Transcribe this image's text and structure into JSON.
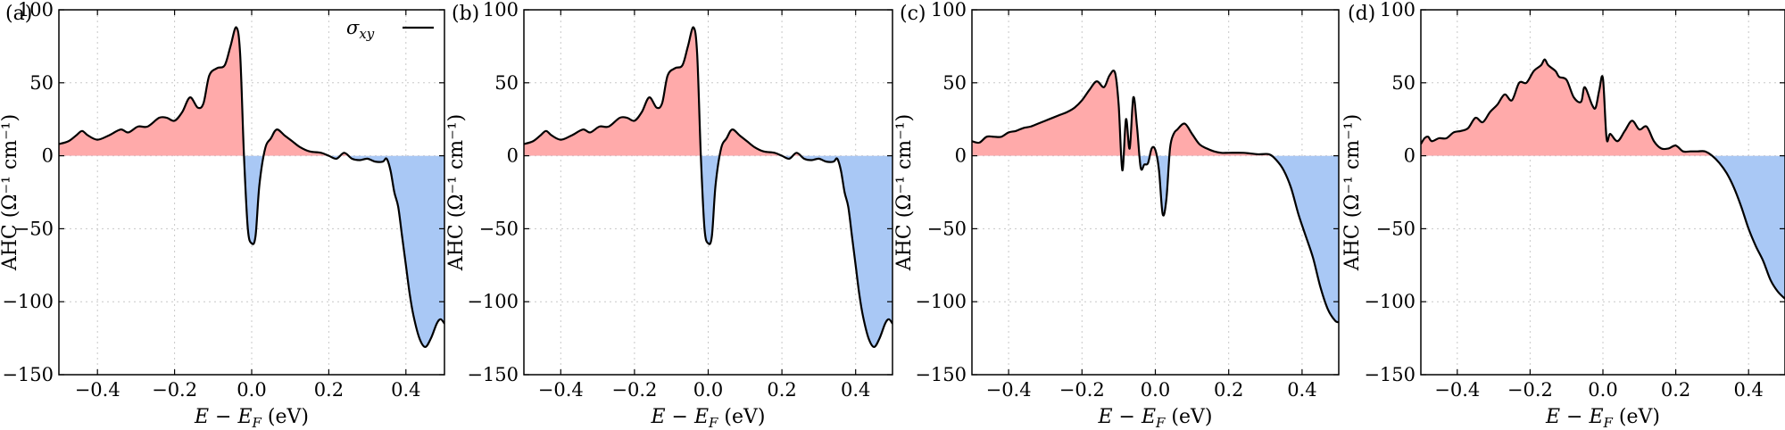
{
  "chart_data": [
    {
      "type": "area",
      "panel_label": "(a)",
      "xlabel": "E − E_F (eV)",
      "ylabel": "AHC (Ω⁻¹ cm⁻¹)",
      "xlim": [
        -0.5,
        0.5
      ],
      "ylim": [
        -150,
        100
      ],
      "xticks": [
        -0.4,
        -0.2,
        0.0,
        0.2,
        0.4
      ],
      "xtick_labels": [
        "−0.4",
        "−0.2",
        "0.0",
        "0.2",
        "0.4"
      ],
      "yticks": [
        -150,
        -100,
        -50,
        0,
        50,
        100
      ],
      "ytick_labels": [
        "−150",
        "−100",
        "−50",
        "0",
        "50",
        "100"
      ],
      "grid": true,
      "legend": {
        "entries": [
          "σxy"
        ],
        "position": "top-right"
      },
      "fill_colors": {
        "positive": "#ffaaaa",
        "negative": "#a9c8f5"
      },
      "series": [
        {
          "name": "σxy",
          "x": [
            -0.5,
            -0.475,
            -0.455,
            -0.44,
            -0.425,
            -0.4,
            -0.37,
            -0.34,
            -0.32,
            -0.295,
            -0.27,
            -0.24,
            -0.22,
            -0.2,
            -0.18,
            -0.16,
            -0.14,
            -0.125,
            -0.11,
            -0.09,
            -0.07,
            -0.055,
            -0.04,
            -0.03,
            -0.02,
            -0.01,
            0.0,
            0.01,
            0.02,
            0.035,
            0.05,
            0.065,
            0.085,
            0.105,
            0.125,
            0.15,
            0.18,
            0.2,
            0.22,
            0.24,
            0.26,
            0.28,
            0.3,
            0.32,
            0.34,
            0.35,
            0.36,
            0.37,
            0.38,
            0.39,
            0.4,
            0.41,
            0.42,
            0.435,
            0.45,
            0.465,
            0.48,
            0.49,
            0.5
          ],
          "y": [
            8,
            10,
            14,
            17,
            14,
            11,
            14,
            18,
            16,
            20,
            20,
            26,
            26,
            24,
            30,
            40,
            33,
            36,
            55,
            60,
            62,
            75,
            88,
            70,
            0,
            -50,
            -60,
            -55,
            -20,
            5,
            12,
            18,
            14,
            10,
            6,
            3,
            2,
            0,
            -2,
            2,
            -2,
            -3,
            -2,
            -4,
            -4,
            -2,
            -10,
            -25,
            -35,
            -55,
            -75,
            -95,
            -110,
            -125,
            -131,
            -125,
            -115,
            -112,
            -115
          ]
        }
      ]
    },
    {
      "type": "area",
      "panel_label": "(b)",
      "xlabel": "E − E_F (eV)",
      "ylabel": "AHC (Ω⁻¹ cm⁻¹)",
      "xlim": [
        -0.5,
        0.5
      ],
      "ylim": [
        -150,
        100
      ],
      "xticks": [
        -0.4,
        -0.2,
        0.0,
        0.2,
        0.4
      ],
      "xtick_labels": [
        "−0.4",
        "−0.2",
        "0.0",
        "0.2",
        "0.4"
      ],
      "yticks": [
        -150,
        -100,
        -50,
        0,
        50,
        100
      ],
      "ytick_labels": [
        "−150",
        "−100",
        "−50",
        "0",
        "50",
        "100"
      ],
      "grid": true,
      "fill_colors": {
        "positive": "#ffaaaa",
        "negative": "#a9c8f5"
      },
      "series": [
        {
          "x": [
            -0.5,
            -0.475,
            -0.455,
            -0.44,
            -0.425,
            -0.4,
            -0.37,
            -0.34,
            -0.32,
            -0.295,
            -0.27,
            -0.24,
            -0.22,
            -0.2,
            -0.18,
            -0.16,
            -0.14,
            -0.125,
            -0.11,
            -0.09,
            -0.07,
            -0.055,
            -0.04,
            -0.03,
            -0.02,
            -0.01,
            0.0,
            0.01,
            0.02,
            0.035,
            0.05,
            0.065,
            0.085,
            0.105,
            0.125,
            0.15,
            0.18,
            0.2,
            0.22,
            0.24,
            0.26,
            0.28,
            0.3,
            0.32,
            0.34,
            0.35,
            0.36,
            0.37,
            0.38,
            0.39,
            0.4,
            0.41,
            0.42,
            0.435,
            0.45,
            0.465,
            0.48,
            0.49,
            0.5
          ],
          "y": [
            8,
            10,
            14,
            17,
            14,
            11,
            14,
            18,
            16,
            20,
            20,
            26,
            26,
            24,
            30,
            40,
            33,
            36,
            55,
            60,
            62,
            75,
            88,
            70,
            0,
            -50,
            -60,
            -55,
            -20,
            5,
            12,
            18,
            14,
            10,
            6,
            3,
            2,
            0,
            -2,
            2,
            -2,
            -3,
            -2,
            -4,
            -4,
            -2,
            -10,
            -25,
            -35,
            -55,
            -75,
            -95,
            -110,
            -125,
            -131,
            -125,
            -115,
            -112,
            -115
          ]
        }
      ]
    },
    {
      "type": "area",
      "panel_label": "(c)",
      "xlabel": "E − E_F (eV)",
      "ylabel": "AHC (Ω⁻¹ cm⁻¹)",
      "xlim": [
        -0.5,
        0.5
      ],
      "ylim": [
        -150,
        100
      ],
      "xticks": [
        -0.4,
        -0.2,
        0.0,
        0.2,
        0.4
      ],
      "xtick_labels": [
        "−0.4",
        "−0.2",
        "0.0",
        "0.2",
        "0.4"
      ],
      "yticks": [
        -150,
        -100,
        -50,
        0,
        50,
        100
      ],
      "ytick_labels": [
        "−150",
        "−100",
        "−50",
        "0",
        "50",
        "100"
      ],
      "grid": true,
      "fill_colors": {
        "positive": "#ffaaaa",
        "negative": "#a9c8f5"
      },
      "series": [
        {
          "x": [
            -0.5,
            -0.48,
            -0.46,
            -0.44,
            -0.42,
            -0.4,
            -0.38,
            -0.36,
            -0.34,
            -0.32,
            -0.3,
            -0.28,
            -0.26,
            -0.24,
            -0.22,
            -0.2,
            -0.18,
            -0.16,
            -0.14,
            -0.125,
            -0.11,
            -0.1,
            -0.09,
            -0.08,
            -0.07,
            -0.06,
            -0.05,
            -0.04,
            -0.03,
            -0.02,
            -0.01,
            0.0,
            0.01,
            0.02,
            0.03,
            0.04,
            0.05,
            0.06,
            0.08,
            0.1,
            0.12,
            0.14,
            0.16,
            0.18,
            0.2,
            0.24,
            0.28,
            0.31,
            0.33,
            0.35,
            0.37,
            0.39,
            0.41,
            0.43,
            0.45,
            0.47,
            0.49,
            0.5
          ],
          "y": [
            10,
            9,
            13,
            13,
            13,
            16,
            17,
            19,
            20,
            22,
            24,
            26,
            28,
            30,
            33,
            38,
            45,
            51,
            47,
            55,
            57,
            35,
            -10,
            25,
            5,
            40,
            20,
            -8,
            -6,
            -5,
            5,
            4,
            -10,
            -40,
            -30,
            5,
            15,
            18,
            22,
            15,
            8,
            5,
            3,
            2,
            2,
            2,
            1,
            1,
            -3,
            -10,
            -22,
            -40,
            -55,
            -70,
            -90,
            -105,
            -113,
            -114
          ]
        }
      ]
    },
    {
      "type": "area",
      "panel_label": "(d)",
      "xlabel": "E − E_F (eV)",
      "ylabel": "AHC (Ω⁻¹ cm⁻¹)",
      "xlim": [
        -0.5,
        0.5
      ],
      "ylim": [
        -150,
        100
      ],
      "xticks": [
        -0.4,
        -0.2,
        0.0,
        0.2,
        0.4
      ],
      "xtick_labels": [
        "−0.4",
        "−0.2",
        "0.0",
        "0.2",
        "0.4"
      ],
      "yticks": [
        -150,
        -100,
        -50,
        0,
        50,
        100
      ],
      "ytick_labels": [
        "−150",
        "−100",
        "−50",
        "0",
        "50",
        "100"
      ],
      "grid": true,
      "fill_colors": {
        "positive": "#ffaaaa",
        "negative": "#a9c8f5"
      },
      "series": [
        {
          "x": [
            -0.5,
            -0.49,
            -0.48,
            -0.47,
            -0.45,
            -0.43,
            -0.41,
            -0.39,
            -0.37,
            -0.35,
            -0.33,
            -0.31,
            -0.29,
            -0.27,
            -0.25,
            -0.23,
            -0.21,
            -0.19,
            -0.17,
            -0.16,
            -0.15,
            -0.13,
            -0.12,
            -0.1,
            -0.08,
            -0.06,
            -0.05,
            -0.03,
            -0.02,
            -0.01,
            0.0,
            0.01,
            0.02,
            0.04,
            0.06,
            0.08,
            0.1,
            0.12,
            0.14,
            0.16,
            0.18,
            0.2,
            0.22,
            0.24,
            0.26,
            0.28,
            0.3,
            0.32,
            0.34,
            0.36,
            0.38,
            0.4,
            0.42,
            0.44,
            0.46,
            0.48,
            0.5
          ],
          "y": [
            8,
            12,
            13,
            10,
            12,
            12,
            16,
            17,
            19,
            26,
            23,
            30,
            35,
            42,
            38,
            50,
            50,
            58,
            62,
            66,
            62,
            58,
            54,
            52,
            40,
            37,
            47,
            35,
            33,
            45,
            53,
            12,
            15,
            10,
            17,
            24,
            18,
            20,
            10,
            5,
            5,
            7,
            3,
            3,
            3,
            3,
            0,
            -5,
            -12,
            -22,
            -35,
            -50,
            -62,
            -72,
            -85,
            -93,
            -98
          ]
        }
      ]
    }
  ]
}
